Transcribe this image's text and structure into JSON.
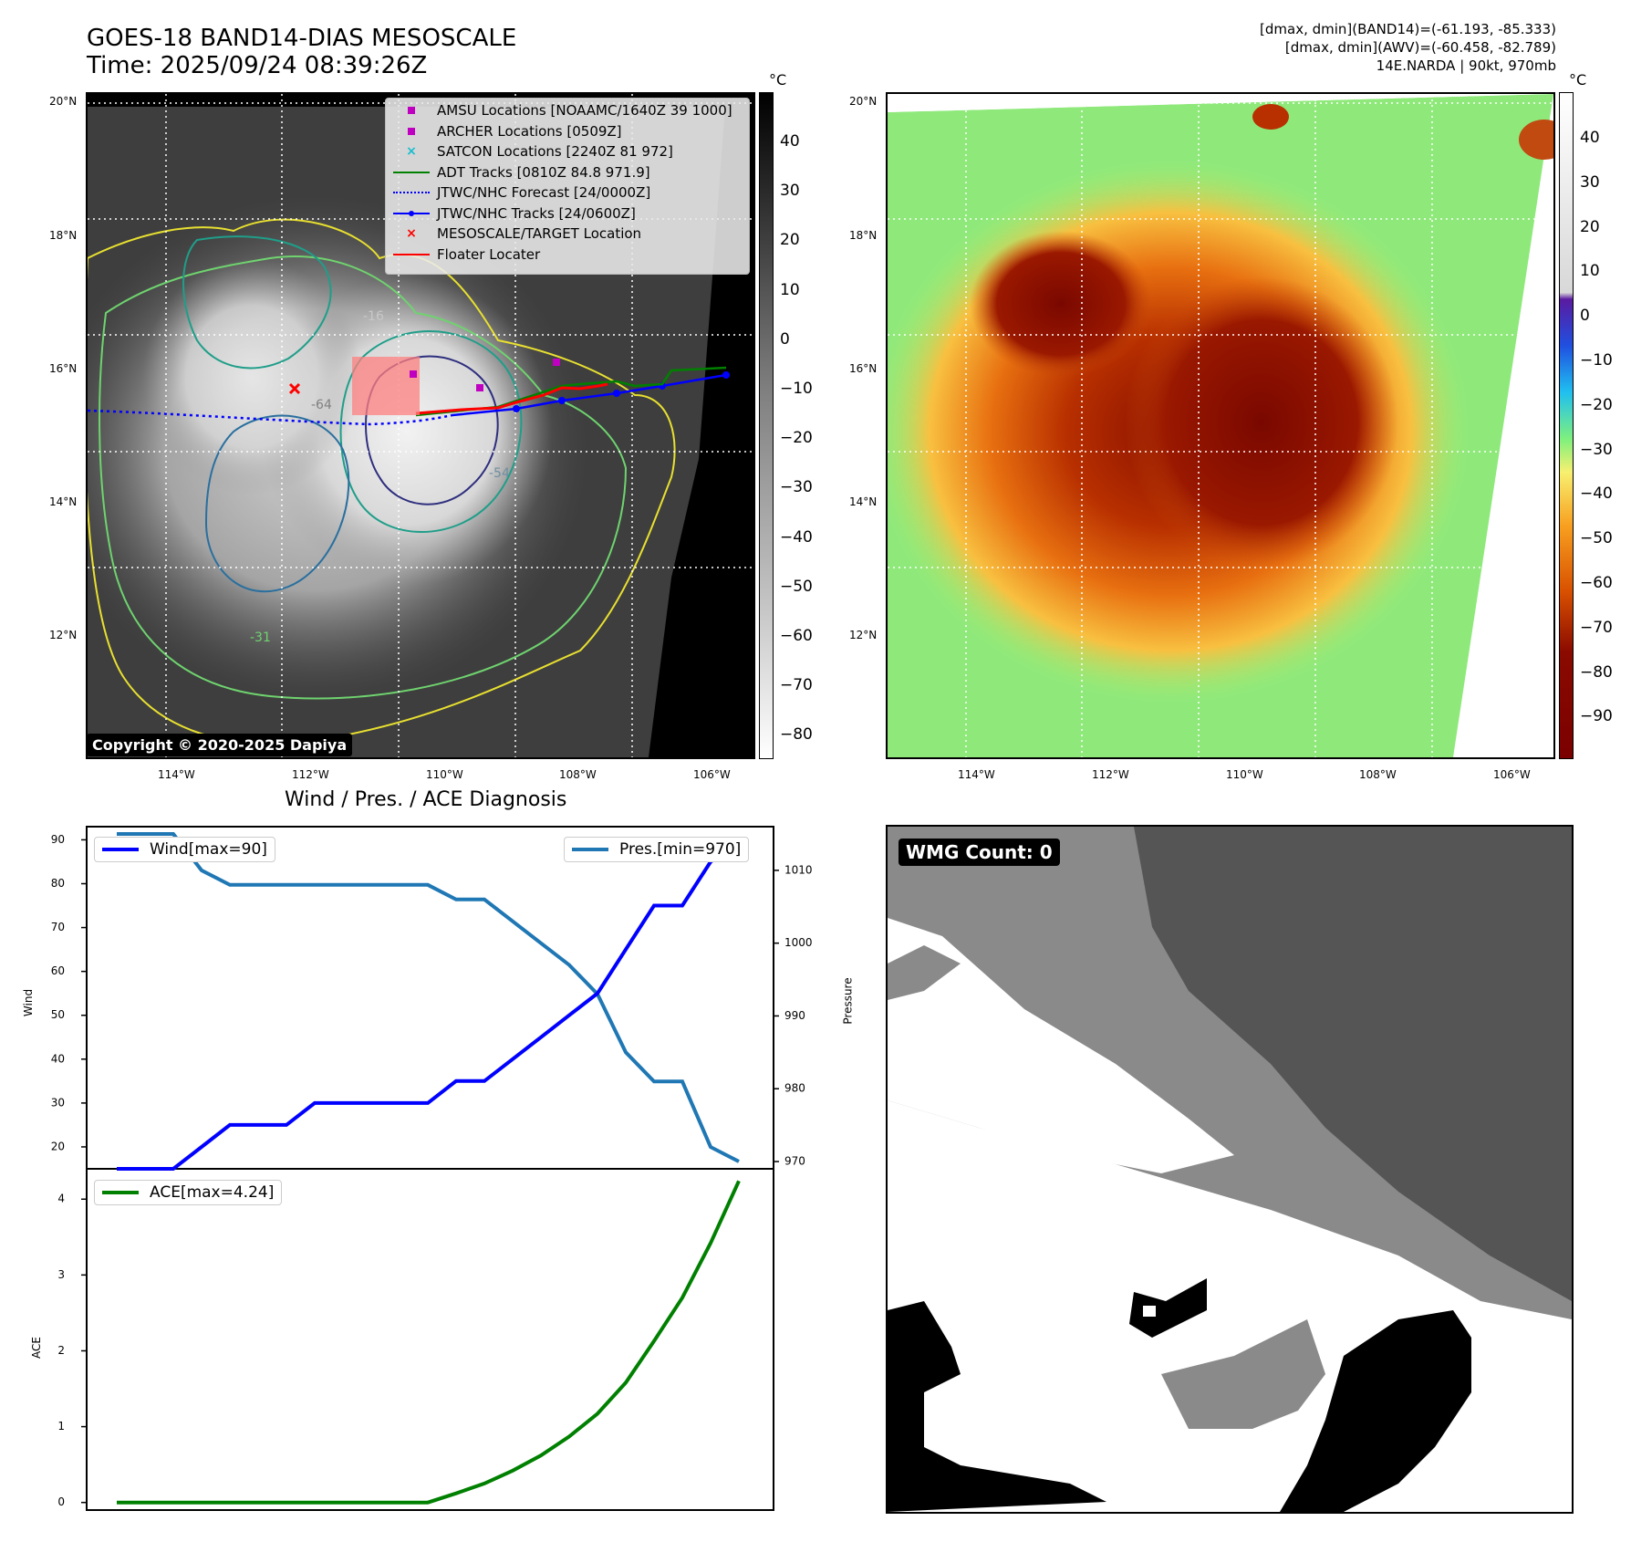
{
  "header": {
    "title_line1": "GOES-18 BAND14-DIAS MESOSCALE",
    "title_line2": "Time: 2025/09/24 08:39:26Z",
    "right_line1": "[dmax, dmin](BAND14)=(-61.193, -85.333)",
    "right_line2": "[dmax, dmin](AWV)=(-60.458, -82.789)",
    "right_line3": "14E.NARDA | 90kt, 970mb"
  },
  "map": {
    "lat_ticks": [
      "20°N",
      "18°N",
      "16°N",
      "14°N",
      "12°N"
    ],
    "lon_ticks": [
      "114°W",
      "112°W",
      "110°W",
      "108°W",
      "106°W"
    ],
    "colors": {
      "land_bg": "#000000",
      "contour_yellow": "#e8e030",
      "contour_green": "#6fd36f",
      "contour_teal": "#1f9e89",
      "contour_blue": "#2a6f9e",
      "contour_navy": "#2e2e7e"
    },
    "contour_labels": [
      "-16",
      "-64",
      "-54",
      "-31"
    ]
  },
  "legend": {
    "items": [
      {
        "label": "AMSU Locations [NOAAMC/1640Z 39 1000]",
        "color": "#c000c0",
        "marker": "square"
      },
      {
        "label": "ARCHER Locations [0509Z]",
        "color": "#c000c0",
        "marker": "square"
      },
      {
        "label": "SATCON Locations [2240Z 81 972]",
        "color": "#17becf",
        "marker": "x"
      },
      {
        "label": "ADT Tracks [0810Z 84.8 971.9]",
        "color": "#008000",
        "marker": "line"
      },
      {
        "label": "JTWC/NHC Forecast [24/0000Z]",
        "color": "#0000ff",
        "marker": "dotted"
      },
      {
        "label": "JTWC/NHC Tracks [24/0600Z]",
        "color": "#0000ff",
        "marker": "line-dot"
      },
      {
        "label": "MESOSCALE/TARGET Location",
        "color": "#ff0000",
        "marker": "x"
      },
      {
        "label": "Floater Locater",
        "color": "#ff0000",
        "marker": "line"
      }
    ]
  },
  "copyright": "Copyright © 2020-2025 Dapiya",
  "colorbar_left": {
    "unit": "°C",
    "ticks": [
      "40",
      "30",
      "20",
      "10",
      "0",
      "−10",
      "−20",
      "−30",
      "−40",
      "−50",
      "−60",
      "−70",
      "−80"
    ]
  },
  "colorbar_right": {
    "unit": "°C",
    "ticks": [
      "40",
      "30",
      "20",
      "10",
      "0",
      "−10",
      "−20",
      "−30",
      "−40",
      "−50",
      "−60",
      "−70",
      "−80",
      "−90"
    ]
  },
  "diag": {
    "title": "Wind / Pres. / ACE Diagnosis",
    "wind_legend": "Wind[max=90]",
    "pres_legend": "Pres.[min=970]",
    "ace_legend": "ACE[max=4.24]",
    "ylabel_wind": "Wind",
    "ylabel_pres": "Pressure",
    "ylabel_ace": "ACE",
    "wind_ticks": [
      "90",
      "80",
      "70",
      "60",
      "50",
      "40",
      "30",
      "20"
    ],
    "pres_ticks": [
      "1010",
      "1000",
      "990",
      "980",
      "970"
    ],
    "ace_ticks": [
      "4",
      "3",
      "2",
      "1",
      "0"
    ]
  },
  "wmg": {
    "label": "WMG Count: 0"
  },
  "chart_data": [
    {
      "type": "line",
      "title": "Wind / Pres. / ACE Diagnosis",
      "xlabel": "",
      "ylabel": "Wind",
      "y2label": "Pressure",
      "ylim": [
        15,
        93
      ],
      "y2lim": [
        969,
        1016
      ],
      "series": [
        {
          "name": "Wind[max=90]",
          "color": "#0000ff",
          "axis": "left",
          "values": [
            15,
            15,
            15,
            20,
            25,
            25,
            25,
            30,
            30,
            30,
            30,
            30,
            35,
            35,
            40,
            45,
            50,
            55,
            65,
            75,
            75,
            85,
            90
          ]
        },
        {
          "name": "Pres.[min=970]",
          "color": "#1f77b4",
          "axis": "right",
          "values": [
            1015,
            1015,
            1015,
            1010,
            1008,
            1008,
            1008,
            1008,
            1008,
            1008,
            1008,
            1008,
            1006,
            1006,
            1003,
            1000,
            997,
            993,
            985,
            981,
            981,
            972,
            970
          ]
        }
      ]
    },
    {
      "type": "line",
      "title": "",
      "xlabel": "",
      "ylabel": "ACE",
      "ylim": [
        -0.1,
        4.4
      ],
      "series": [
        {
          "name": "ACE[max=4.24]",
          "color": "#008000",
          "values": [
            0,
            0,
            0,
            0,
            0,
            0,
            0,
            0,
            0,
            0,
            0,
            0,
            0.12,
            0.25,
            0.42,
            0.62,
            0.87,
            1.17,
            1.58,
            2.13,
            2.7,
            3.42,
            4.24
          ]
        }
      ]
    }
  ]
}
